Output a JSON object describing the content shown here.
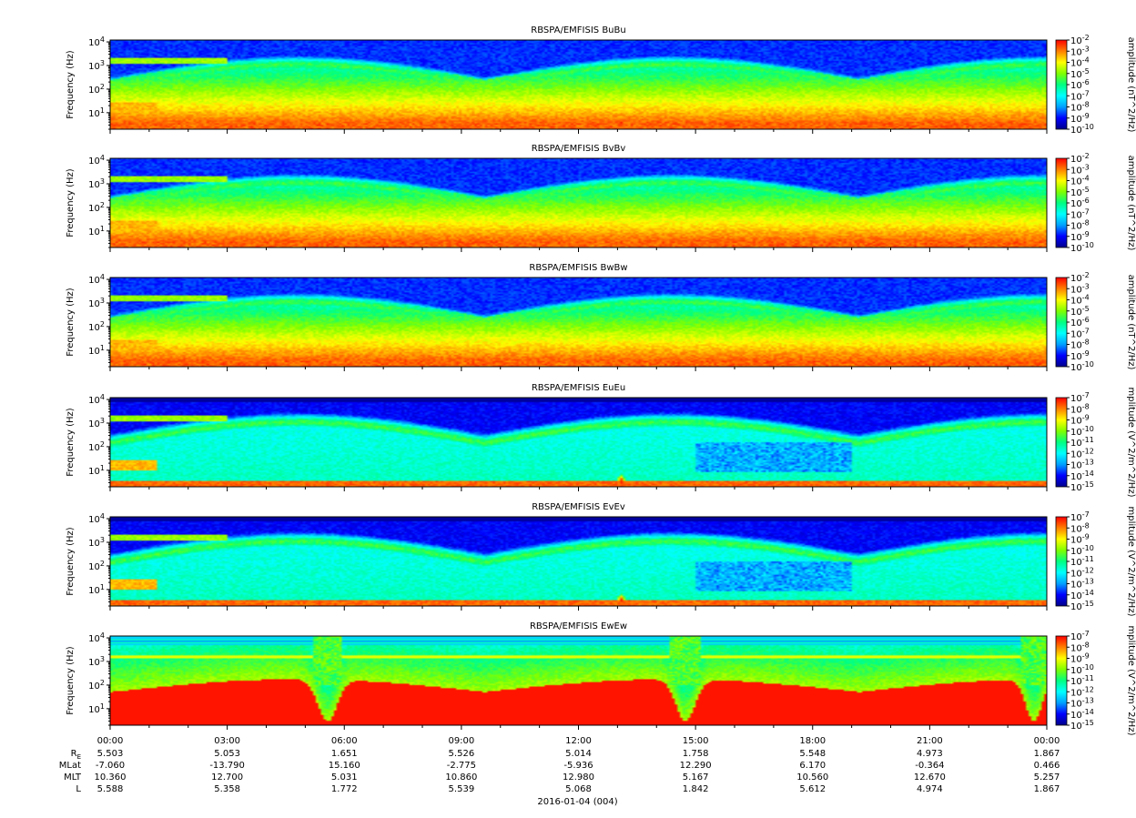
{
  "figure": {
    "date_label": "2016-01-04 (004)",
    "ephemeris_labels": {
      "re": "R",
      "re_sub": "E",
      "mlat": "MLat",
      "mlt": "MLT",
      "l": "L"
    },
    "x_tick_labels": [
      "00:00",
      "03:00",
      "06:00",
      "09:00",
      "12:00",
      "15:00",
      "18:00",
      "21:00",
      "00:00"
    ],
    "ephemeris_rows": {
      "re": [
        "5.503",
        "5.053",
        "1.651",
        "5.526",
        "5.014",
        "1.758",
        "5.548",
        "4.973",
        "1.867"
      ],
      "mlat": [
        "-7.060",
        "-13.790",
        "15.160",
        "-2.775",
        "-5.936",
        "12.290",
        "6.170",
        "-0.364",
        "0.466"
      ],
      "mlt": [
        "10.360",
        "12.700",
        "5.031",
        "10.860",
        "12.980",
        "5.167",
        "10.560",
        "12.670",
        "5.257"
      ],
      "l": [
        "5.588",
        "5.358",
        "1.772",
        "5.539",
        "5.068",
        "1.842",
        "5.612",
        "4.974",
        "1.867"
      ]
    },
    "colors": {
      "colorbar_stops": [
        "#00008b",
        "#0000ff",
        "#00a0ff",
        "#00ffff",
        "#00ff80",
        "#80ff00",
        "#ffff00",
        "#ff8000",
        "#ff0000"
      ]
    }
  },
  "chart_data": [
    {
      "type": "heatmap",
      "title": "RBSPA/EMFISIS  BuBu",
      "ylabel": "Frequency (Hz)",
      "yscale": "log",
      "ylim": [
        2,
        12000
      ],
      "y_ticks": [
        {
          "base": "10",
          "exp": "4"
        },
        {
          "base": "10",
          "exp": "3"
        },
        {
          "base": "10",
          "exp": "2"
        },
        {
          "base": "10",
          "exp": "1"
        }
      ],
      "xlim": [
        "2016-01-04 00:00",
        "2016-01-05 00:00"
      ],
      "colorbar": {
        "label": "amplitude (nT^2/Hz)",
        "scale": "log",
        "range": [
          1e-10,
          0.01
        ],
        "tick_labels": [
          {
            "base": "10",
            "exp": "-2"
          },
          {
            "base": "10",
            "exp": "-3"
          },
          {
            "base": "10",
            "exp": "-4"
          },
          {
            "base": "10",
            "exp": "-5"
          },
          {
            "base": "10",
            "exp": "-6"
          },
          {
            "base": "10",
            "exp": "-7"
          },
          {
            "base": "10",
            "exp": "-8"
          },
          {
            "base": "10",
            "exp": "-9"
          },
          {
            "base": "10",
            "exp": "-10"
          }
        ]
      }
    },
    {
      "type": "heatmap",
      "title": "RBSPA/EMFISIS  BvBv",
      "ylabel": "Frequency (Hz)",
      "yscale": "log",
      "ylim": [
        2,
        12000
      ],
      "y_ticks": [
        {
          "base": "10",
          "exp": "4"
        },
        {
          "base": "10",
          "exp": "3"
        },
        {
          "base": "10",
          "exp": "2"
        },
        {
          "base": "10",
          "exp": "1"
        }
      ],
      "xlim": [
        "2016-01-04 00:00",
        "2016-01-05 00:00"
      ],
      "colorbar": {
        "label": "amplitude (nT^2/Hz)",
        "scale": "log",
        "range": [
          1e-10,
          0.01
        ],
        "tick_labels": [
          {
            "base": "10",
            "exp": "-2"
          },
          {
            "base": "10",
            "exp": "-3"
          },
          {
            "base": "10",
            "exp": "-4"
          },
          {
            "base": "10",
            "exp": "-5"
          },
          {
            "base": "10",
            "exp": "-6"
          },
          {
            "base": "10",
            "exp": "-7"
          },
          {
            "base": "10",
            "exp": "-8"
          },
          {
            "base": "10",
            "exp": "-9"
          },
          {
            "base": "10",
            "exp": "-10"
          }
        ]
      }
    },
    {
      "type": "heatmap",
      "title": "RBSPA/EMFISIS  BwBw",
      "ylabel": "Frequency (Hz)",
      "yscale": "log",
      "ylim": [
        2,
        12000
      ],
      "y_ticks": [
        {
          "base": "10",
          "exp": "4"
        },
        {
          "base": "10",
          "exp": "3"
        },
        {
          "base": "10",
          "exp": "2"
        },
        {
          "base": "10",
          "exp": "1"
        }
      ],
      "xlim": [
        "2016-01-04 00:00",
        "2016-01-05 00:00"
      ],
      "colorbar": {
        "label": "amplitude (nT^2/Hz)",
        "scale": "log",
        "range": [
          1e-10,
          0.01
        ],
        "tick_labels": [
          {
            "base": "10",
            "exp": "-2"
          },
          {
            "base": "10",
            "exp": "-3"
          },
          {
            "base": "10",
            "exp": "-4"
          },
          {
            "base": "10",
            "exp": "-5"
          },
          {
            "base": "10",
            "exp": "-6"
          },
          {
            "base": "10",
            "exp": "-7"
          },
          {
            "base": "10",
            "exp": "-8"
          },
          {
            "base": "10",
            "exp": "-9"
          },
          {
            "base": "10",
            "exp": "-10"
          }
        ]
      }
    },
    {
      "type": "heatmap",
      "title": "RBSPA/EMFISIS  EuEu",
      "ylabel": "Frequency (Hz)",
      "yscale": "log",
      "ylim": [
        2,
        12000
      ],
      "y_ticks": [
        {
          "base": "10",
          "exp": "4"
        },
        {
          "base": "10",
          "exp": "3"
        },
        {
          "base": "10",
          "exp": "2"
        },
        {
          "base": "10",
          "exp": "1"
        }
      ],
      "xlim": [
        "2016-01-04 00:00",
        "2016-01-05 00:00"
      ],
      "colorbar": {
        "label": "mplitude (V^2/m^2/Hz)",
        "scale": "log",
        "range": [
          1e-15,
          1e-07
        ],
        "tick_labels": [
          {
            "base": "10",
            "exp": "-7"
          },
          {
            "base": "10",
            "exp": "-8"
          },
          {
            "base": "10",
            "exp": "-9"
          },
          {
            "base": "10",
            "exp": "-10"
          },
          {
            "base": "10",
            "exp": "-11"
          },
          {
            "base": "10",
            "exp": "-12"
          },
          {
            "base": "10",
            "exp": "-13"
          },
          {
            "base": "10",
            "exp": "-14"
          },
          {
            "base": "10",
            "exp": "-15"
          }
        ]
      }
    },
    {
      "type": "heatmap",
      "title": "RBSPA/EMFISIS  EvEv",
      "ylabel": "Frequency (Hz)",
      "yscale": "log",
      "ylim": [
        2,
        12000
      ],
      "y_ticks": [
        {
          "base": "10",
          "exp": "4"
        },
        {
          "base": "10",
          "exp": "3"
        },
        {
          "base": "10",
          "exp": "2"
        },
        {
          "base": "10",
          "exp": "1"
        }
      ],
      "xlim": [
        "2016-01-04 00:00",
        "2016-01-05 00:00"
      ],
      "colorbar": {
        "label": "mplitude (V^2/m^2/Hz)",
        "scale": "log",
        "range": [
          1e-15,
          1e-07
        ],
        "tick_labels": [
          {
            "base": "10",
            "exp": "-7"
          },
          {
            "base": "10",
            "exp": "-8"
          },
          {
            "base": "10",
            "exp": "-9"
          },
          {
            "base": "10",
            "exp": "-10"
          },
          {
            "base": "10",
            "exp": "-11"
          },
          {
            "base": "10",
            "exp": "-12"
          },
          {
            "base": "10",
            "exp": "-13"
          },
          {
            "base": "10",
            "exp": "-14"
          },
          {
            "base": "10",
            "exp": "-15"
          }
        ]
      }
    },
    {
      "type": "heatmap",
      "title": "RBSPA/EMFISIS  EwEw",
      "ylabel": "Frequency (Hz)",
      "yscale": "log",
      "ylim": [
        2,
        12000
      ],
      "y_ticks": [
        {
          "base": "10",
          "exp": "4"
        },
        {
          "base": "10",
          "exp": "3"
        },
        {
          "base": "10",
          "exp": "2"
        },
        {
          "base": "10",
          "exp": "1"
        }
      ],
      "xlim": [
        "2016-01-04 00:00",
        "2016-01-05 00:00"
      ],
      "colorbar": {
        "label": "mplitude (V^2/m^2/Hz)",
        "scale": "log",
        "range": [
          1e-15,
          1e-07
        ],
        "tick_labels": [
          {
            "base": "10",
            "exp": "-7"
          },
          {
            "base": "10",
            "exp": "-8"
          },
          {
            "base": "10",
            "exp": "-9"
          },
          {
            "base": "10",
            "exp": "-10"
          },
          {
            "base": "10",
            "exp": "-11"
          },
          {
            "base": "10",
            "exp": "-12"
          },
          {
            "base": "10",
            "exp": "-13"
          },
          {
            "base": "10",
            "exp": "-14"
          },
          {
            "base": "10",
            "exp": "-15"
          }
        ]
      }
    }
  ]
}
